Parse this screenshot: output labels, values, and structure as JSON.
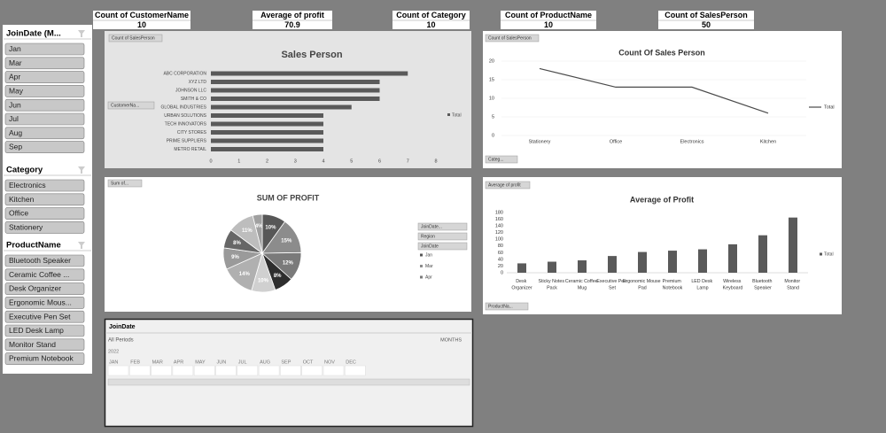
{
  "kpis": [
    {
      "label": "Count of CustomerName",
      "value": 10
    },
    {
      "label": "Average of profit",
      "value": 70.9
    },
    {
      "label": "Count of Category",
      "value": 10
    },
    {
      "label": "Count of ProductName",
      "value": 10
    },
    {
      "label": "Count of SalesPerson",
      "value": 50
    }
  ],
  "slicers": [
    {
      "title": "JoinDate (M...",
      "items": [
        "Jan",
        "Mar",
        "Apr",
        "May",
        "Jun",
        "Jul",
        "Aug",
        "Sep"
      ]
    },
    {
      "title": "Category",
      "items": [
        "Electronics",
        "Kitchen",
        "Office",
        "Stationery"
      ]
    },
    {
      "title": "ProductName",
      "items": [
        "Bluetooth Speaker",
        "Ceramic Coffee ...",
        "Desk Organizer",
        "Ergonomic Mous...",
        "Executive Pen Set",
        "LED Desk Lamp",
        "Monitor Stand",
        "Premium Notebook"
      ]
    }
  ],
  "chart_data": [
    {
      "type": "barh",
      "title": "Sales Person",
      "field_button": "Count of SalesPerson",
      "axis_button": "CustomerNa...",
      "legend": "Total",
      "color": "#5a5a5a",
      "categories": [
        "ABC CORPORATION",
        "XYZ LTD",
        "JOHNSON LLC",
        "SMITH & CO",
        "GLOBAL INDUSTRIES",
        "URBAN SOLUTIONS",
        "TECH INNOVATORS",
        "CITY STORES",
        "PRIME SUPPLIERS",
        "METRO RETAIL"
      ],
      "values": [
        7,
        6,
        6,
        6,
        5,
        4,
        4,
        4,
        4,
        4
      ],
      "xlim": [
        0,
        8
      ],
      "xticks": [
        0,
        1,
        2,
        3,
        4,
        5,
        6,
        7,
        8
      ]
    },
    {
      "type": "line",
      "title": "Count Of Sales Person",
      "field_button": "Count of SalesPerson",
      "axis_button": "Categ...",
      "categories": [
        "Stationery",
        "Office",
        "Electronics",
        "Kitchen"
      ],
      "series": [
        {
          "name": "Total",
          "color": "#4a4a4a",
          "values": [
            18,
            13,
            13,
            6
          ]
        }
      ],
      "ylim": [
        0,
        20
      ],
      "yticks": [
        0,
        5,
        10,
        15,
        20
      ],
      "grid": true
    },
    {
      "type": "pie",
      "title": "SUM OF PROFIT",
      "field_button": "Sum of...",
      "filter_buttons": [
        "JoinDate...",
        "Region",
        "JoinDate"
      ],
      "legend": [
        "Jan",
        "Mar",
        "Apr"
      ],
      "values": [
        10,
        15,
        12,
        8,
        10,
        14,
        9,
        8,
        11,
        4
      ],
      "value_labels": [
        "10%",
        "15%",
        "12%",
        "8%",
        "10%",
        "14%",
        "9%",
        "8%",
        "11%",
        "4%"
      ],
      "colors": [
        "#575757",
        "#8c8c8c",
        "#7a7a7a",
        "#2e2e2e",
        "#d0d0d0",
        "#b0b0b0",
        "#9a9a9a",
        "#666666",
        "#bdbdbd",
        "#a0a0a0"
      ]
    },
    {
      "type": "bar",
      "title": "Average of Profit",
      "field_button": "Average of profit",
      "axis_button": "ProductNa...",
      "legend": "Total",
      "color": "#5a5a5a",
      "categories": [
        "Desk Organizer",
        "Sticky Notes Pack",
        "Ceramic Coffee Mug",
        "Executive Pen Set",
        "Ergonomic Mouse Pad",
        "Premium Notebook",
        "LED Desk Lamp",
        "Wireless Keyboard",
        "Bluetooth Speaker",
        "Monitor Stand"
      ],
      "values": [
        28,
        33,
        37,
        50,
        62,
        66,
        70,
        85,
        112,
        165
      ],
      "ylim": [
        0,
        180
      ],
      "yticks": [
        0,
        20,
        40,
        60,
        80,
        100,
        120,
        140,
        160,
        180
      ]
    }
  ],
  "timeline": {
    "title": "JoinDate",
    "period": "All Periods",
    "level": "MONTHS",
    "year": "2022",
    "months": [
      "JAN",
      "FEB",
      "MAR",
      "APR",
      "MAY",
      "JUN",
      "JUL",
      "AUG",
      "SEP",
      "OCT",
      "NOV",
      "DEC"
    ]
  }
}
